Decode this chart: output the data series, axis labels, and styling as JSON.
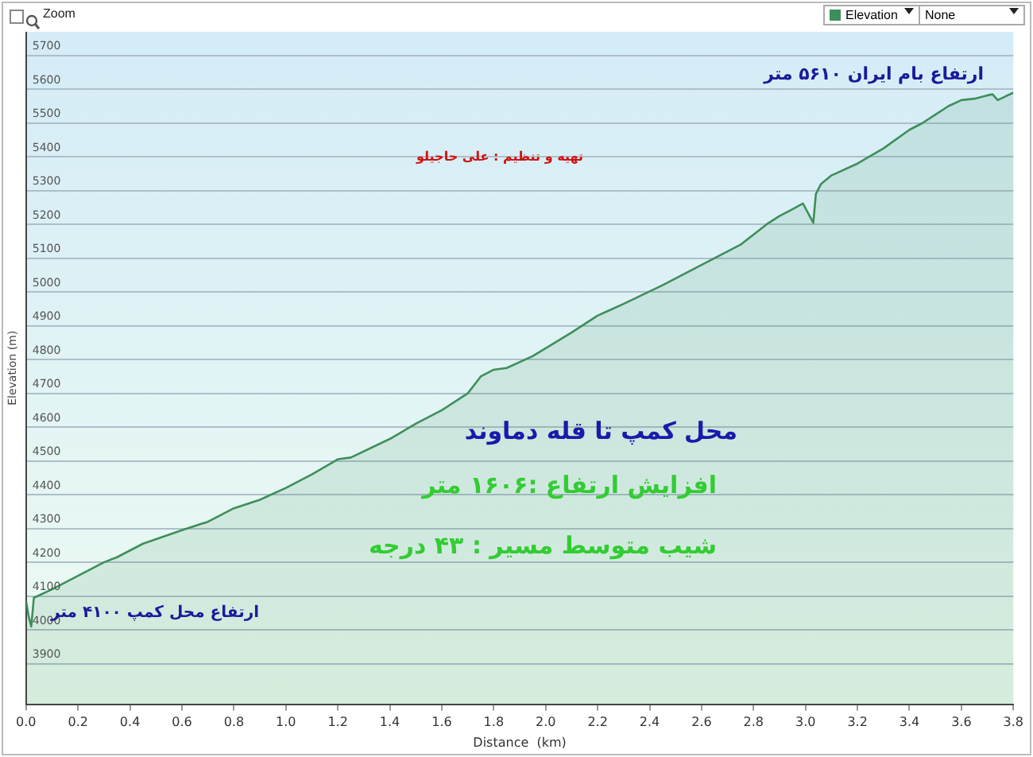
{
  "chart_data": {
    "type": "area",
    "xlabel": "Distance  (km)",
    "ylabel": "Elevation (m)",
    "x": [
      0,
      0.01,
      0.02,
      0.03,
      0.1,
      0.2,
      0.3,
      0.35,
      0.45,
      0.6,
      0.7,
      0.8,
      0.9,
      1.0,
      1.1,
      1.2,
      1.25,
      1.4,
      1.5,
      1.6,
      1.7,
      1.75,
      1.8,
      1.85,
      1.95,
      2.1,
      2.2,
      2.3,
      2.45,
      2.6,
      2.75,
      2.85,
      2.9,
      2.95,
      2.99,
      3.03,
      3.04,
      3.06,
      3.1,
      3.2,
      3.3,
      3.4,
      3.45,
      3.5,
      3.55,
      3.6,
      3.65,
      3.7,
      3.72,
      3.74,
      3.8
    ],
    "series": [
      {
        "name": "Elevation",
        "color": "#3d8f5a",
        "values": [
          4085,
          4040,
          4010,
          4095,
          4120,
          4160,
          4200,
          4215,
          4255,
          4295,
          4320,
          4360,
          4385,
          4420,
          4460,
          4505,
          4510,
          4565,
          4610,
          4650,
          4700,
          4750,
          4770,
          4775,
          4810,
          4880,
          4930,
          4965,
          5020,
          5080,
          5140,
          5200,
          5225,
          5245,
          5262,
          5205,
          5290,
          5320,
          5345,
          5380,
          5425,
          5480,
          5500,
          5525,
          5550,
          5568,
          5572,
          5582,
          5585,
          5568,
          5590
        ]
      }
    ],
    "xlim": [
      0,
      3.8
    ],
    "xticks": [
      {
        "value": 0,
        "label": "0.0"
      },
      0.2,
      0.4,
      0.6,
      0.8,
      {
        "value": 1,
        "label": "1.0"
      },
      1.2,
      1.4,
      1.6,
      1.8,
      {
        "value": 2,
        "label": "2.0"
      },
      2.2,
      2.4,
      2.6,
      2.8,
      {
        "value": 3,
        "label": "3.0"
      },
      3.2,
      3.4,
      3.6,
      3.8
    ],
    "ylim": [
      3780,
      5770
    ],
    "yticks": [
      3900,
      4000,
      4100,
      4200,
      4300,
      4400,
      4500,
      4600,
      4700,
      4800,
      4900,
      5000,
      5100,
      5200,
      5300,
      5400,
      5500,
      5600,
      5700
    ],
    "grid": "y",
    "legend": "top right",
    "annotations": [
      "Zoom",
      "None",
      "ارتفاع بام ایران  ۵۶۱۰ متر",
      "تهیه و تنظیم : علی حاجیلو",
      "محل کمپ تا قله دماوند",
      "افزایش ارتفاع :۱۶۰۶ متر",
      "شیب متوسط مسیر : ۴۳ درجه",
      "ارتفاع محل کمپ ۴۱۰۰ متر"
    ]
  }
}
